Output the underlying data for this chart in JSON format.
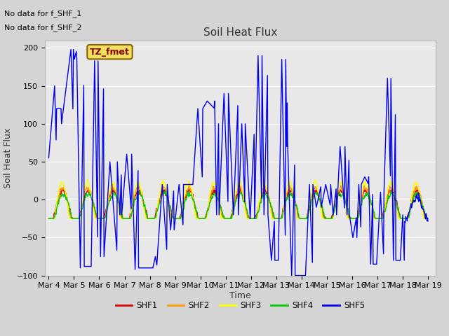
{
  "title": "Soil Heat Flux",
  "ylabel": "Soil Heat Flux",
  "xlabel": "Time",
  "annotation_lines": [
    "No data for f_SHF_1",
    "No data for f_SHF_2"
  ],
  "tz_label": "TZ_fmet",
  "xlim": [
    3.85,
    19.3
  ],
  "ylim": [
    -100,
    210
  ],
  "yticks": [
    -100,
    -50,
    0,
    50,
    100,
    150,
    200
  ],
  "xtick_labels": [
    "Mar 4",
    "Mar 5",
    "Mar 6",
    "Mar 7",
    "Mar 8",
    "Mar 9",
    "Mar 10",
    "Mar 11",
    "Mar 12",
    "Mar 13",
    "Mar 14",
    "Mar 15",
    "Mar 16",
    "Mar 17",
    "Mar 18",
    "Mar 19"
  ],
  "xtick_positions": [
    4,
    5,
    6,
    7,
    8,
    9,
    10,
    11,
    12,
    13,
    14,
    15,
    16,
    17,
    18,
    19
  ],
  "colors": {
    "SHF1": "#dd0000",
    "SHF2": "#ff9900",
    "SHF3": "#ffff00",
    "SHF4": "#00cc00",
    "SHF5": "#0000ee"
  },
  "bg_color": "#e8e8e8",
  "fig_bg": "#d4d4d4",
  "grid_color": "#ffffff",
  "linewidth": 1.0,
  "title_fontsize": 11,
  "tick_fontsize": 8,
  "label_fontsize": 9
}
